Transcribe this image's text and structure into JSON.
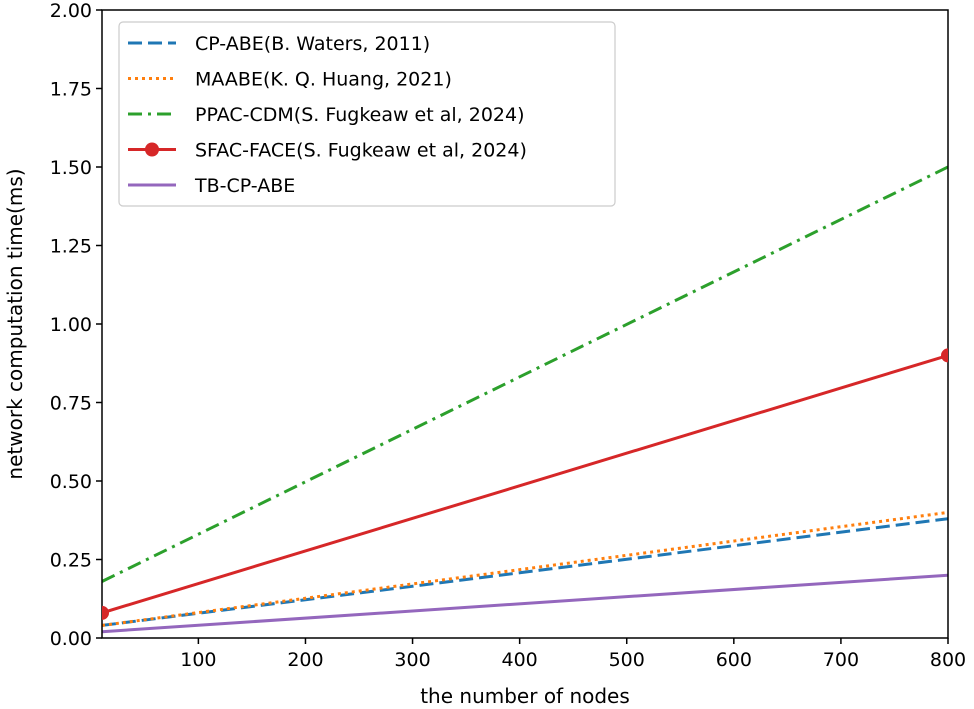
{
  "chart_data": {
    "type": "line",
    "title": "",
    "xlabel": "the number of nodes",
    "ylabel": "network computation time(ms)",
    "xlim": [
      10,
      800
    ],
    "ylim": [
      0,
      2.0
    ],
    "xticks": [
      100,
      200,
      300,
      400,
      500,
      600,
      700,
      800
    ],
    "xtick_labels": [
      "100",
      "200",
      "300",
      "400",
      "500",
      "600",
      "700",
      "800"
    ],
    "yticks": [
      0,
      0.25,
      0.5,
      0.75,
      1.0,
      1.25,
      1.5,
      1.75,
      2.0
    ],
    "ytick_labels": [
      "0.00",
      "0.25",
      "0.50",
      "0.75",
      "1.00",
      "1.25",
      "1.50",
      "1.75",
      "2.00"
    ],
    "legend_position": "top-left",
    "series": [
      {
        "name": "CP-ABE(B. Waters, 2011)",
        "color": "#1f77b4",
        "style": "dashed",
        "marker": "none",
        "x": [
          10,
          800
        ],
        "y": [
          0.04,
          0.38
        ]
      },
      {
        "name": "MAABE(K. Q. Huang, 2021)",
        "color": "#ff7f0e",
        "style": "dotted",
        "marker": "none",
        "x": [
          10,
          800
        ],
        "y": [
          0.04,
          0.4
        ]
      },
      {
        "name": "PPAC-CDM(S. Fugkeaw et al, 2024)",
        "color": "#2ca02c",
        "style": "dashdot",
        "marker": "none",
        "x": [
          10,
          800
        ],
        "y": [
          0.18,
          1.5
        ]
      },
      {
        "name": "SFAC-FACE(S. Fugkeaw et al, 2024)",
        "color": "#d62728",
        "style": "solid",
        "marker": "circle",
        "x": [
          10,
          800
        ],
        "y": [
          0.08,
          0.9
        ]
      },
      {
        "name": "TB-CP-ABE",
        "color": "#9467bd",
        "style": "solid",
        "marker": "none",
        "x": [
          10,
          800
        ],
        "y": [
          0.02,
          0.2
        ]
      }
    ]
  }
}
